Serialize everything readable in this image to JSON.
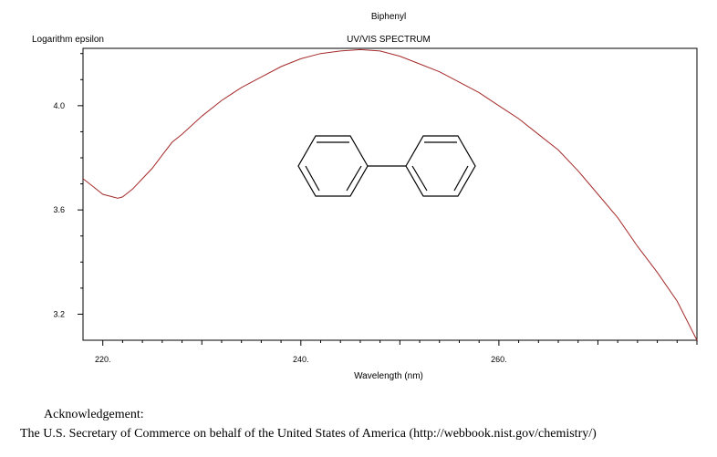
{
  "chart_data": {
    "type": "line",
    "title": "Biphenyl",
    "subtitle": "UV/VIS SPECTRUM",
    "ylabel": "Logarithm epsilon",
    "xlabel": "Wavelength (nm)",
    "xlim": [
      218,
      280
    ],
    "ylim": [
      3.1,
      4.22
    ],
    "x_ticks": [
      220,
      240,
      260
    ],
    "x_tick_labels": [
      "220.",
      "240.",
      "260."
    ],
    "y_ticks": [
      3.2,
      3.6,
      4.0
    ],
    "y_tick_labels": [
      "3.2",
      "3.6",
      "4.0"
    ],
    "grid": false,
    "line_color": "#a52a2a",
    "series": [
      {
        "x": [
          218,
          219,
          220,
          221,
          221.5,
          222,
          223,
          224,
          225,
          226,
          227,
          228,
          230,
          232,
          234,
          236,
          238,
          240,
          242,
          244,
          246,
          248,
          250,
          252,
          254,
          256,
          258,
          260,
          262,
          264,
          266,
          268,
          270,
          272,
          274,
          276,
          278,
          280
        ],
        "values": [
          3.72,
          3.69,
          3.66,
          3.65,
          3.645,
          3.65,
          3.68,
          3.72,
          3.76,
          3.81,
          3.86,
          3.89,
          3.96,
          4.02,
          4.07,
          4.11,
          4.15,
          4.18,
          4.2,
          4.21,
          4.215,
          4.21,
          4.19,
          4.16,
          4.13,
          4.09,
          4.05,
          4.0,
          3.95,
          3.89,
          3.83,
          3.75,
          3.66,
          3.57,
          3.46,
          3.36,
          3.25,
          3.1
        ]
      }
    ]
  },
  "acknowledgement": {
    "heading": "Acknowledgement:",
    "text": "The U.S. Secretary of Commerce on behalf of the United States of America (http://webbook.nist.gov/chemistry/)"
  }
}
